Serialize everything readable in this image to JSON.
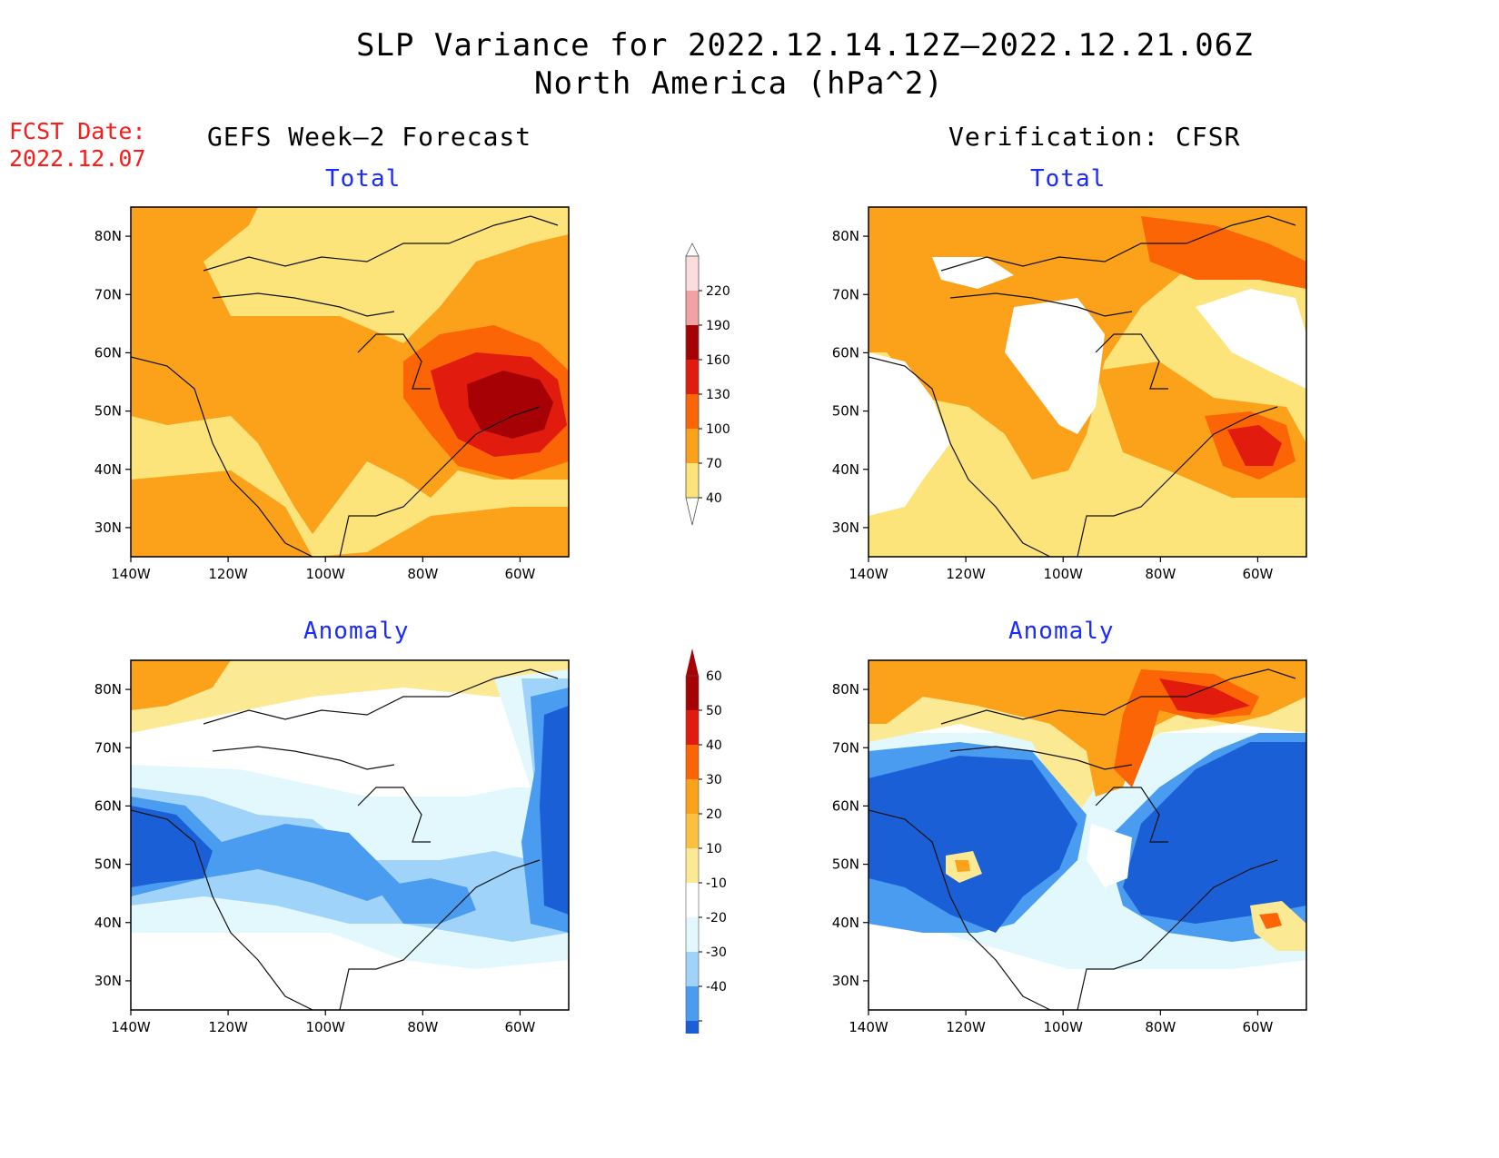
{
  "title": {
    "line1": "SLP Variance for 2022.12.14.12Z—2022.12.21.06Z",
    "line2": "North America (hPa^2)"
  },
  "fcst": {
    "label": "FCST Date:",
    "date": "2022.12.07"
  },
  "columns": {
    "left": "GEFS Week—2 Forecast",
    "right": "Verification: CFSR"
  },
  "panel_titles": {
    "fc_total": "Total",
    "vf_total": "Total",
    "fc_anom": "Anomaly",
    "vf_anom": "Anomaly"
  },
  "axes": {
    "lon_labels": [
      "140W",
      "120W",
      "100W",
      "80W",
      "60W"
    ],
    "lat_labels": [
      "80N",
      "70N",
      "60N",
      "50N",
      "40N",
      "30N"
    ],
    "lon_range": [
      -140,
      -50
    ],
    "lat_range": [
      25,
      85
    ]
  },
  "colorbars": {
    "total": {
      "levels": [
        "40",
        "70",
        "100",
        "130",
        "160",
        "190",
        "220"
      ],
      "colors": [
        "#fce37a",
        "#fba11a",
        "#fb6506",
        "#e21b0f",
        "#a60205",
        "#f4a1a4",
        "#fcdcdd"
      ]
    },
    "anomaly": {
      "levels": [
        "60",
        "50",
        "40",
        "30",
        "20",
        "10",
        "-10",
        "-20",
        "-30",
        "-40"
      ],
      "colors": [
        "#a60205",
        "#e21b0f",
        "#fb6506",
        "#fba11a",
        "#fcbf40",
        "#fce994",
        "#ffffff",
        "#e3f8fd",
        "#9fd3f9",
        "#4a9cf0",
        "#1a5fd6"
      ]
    }
  },
  "colors": {
    "total_bg_fc": "#fba11a",
    "total_bg_vf": "#fce37a",
    "anom_bg": "#ffffff",
    "title_blue": "#1a2bff",
    "fcst_red": "#ff1a1a"
  }
}
